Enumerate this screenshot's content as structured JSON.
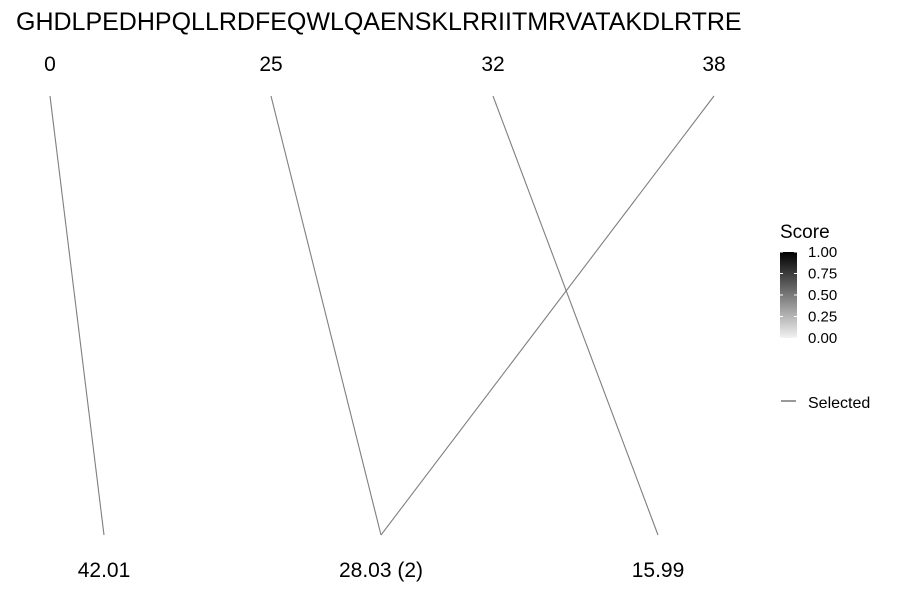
{
  "chart_data": {
    "type": "line",
    "title": "GHDLPEDHPQLLRDFEQWLQAENSKLRRIITMRVATAKDLRTRE",
    "top_positions": [
      "0",
      "25",
      "32",
      "38"
    ],
    "bottom_values": [
      "42.01",
      "28.03 (2)",
      "15.99"
    ],
    "links": [
      {
        "from": 0,
        "to": 0
      },
      {
        "from": 1,
        "to": 1
      },
      {
        "from": 2,
        "to": 2
      },
      {
        "from": 3,
        "to": 1
      }
    ],
    "legend": {
      "title": "Score",
      "ticks": [
        "1.00",
        "0.75",
        "0.50",
        "0.25",
        "0.00"
      ],
      "selected_label": "Selected",
      "placement": "right"
    }
  },
  "colors": {
    "link": "#7f7f7f",
    "gradient_high": "#000000",
    "gradient_low": "#f2f2f2"
  }
}
